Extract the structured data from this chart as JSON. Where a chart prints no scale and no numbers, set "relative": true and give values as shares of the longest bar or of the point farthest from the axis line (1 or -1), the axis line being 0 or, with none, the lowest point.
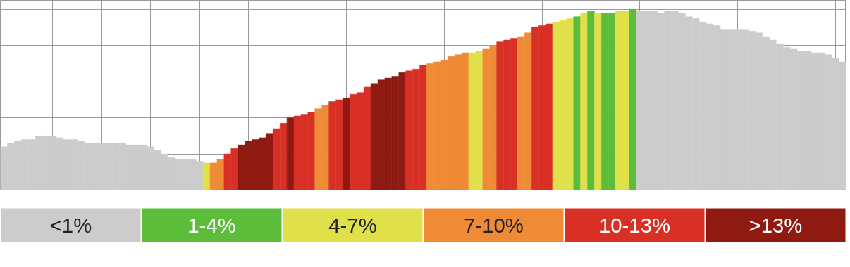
{
  "chart_data": [
    {
      "type": "bar",
      "relative": true,
      "grid": true,
      "tick_labels": false,
      "categories": [
        null,
        null,
        null,
        null,
        null,
        null,
        null,
        null,
        null,
        null,
        null,
        null,
        null,
        null,
        null,
        null,
        null,
        null,
        null,
        null,
        null,
        null,
        null,
        null,
        null,
        null,
        null,
        null,
        null,
        null,
        null,
        null,
        null,
        null,
        null,
        null,
        null,
        null,
        null,
        null,
        null,
        null,
        null,
        null,
        null,
        null,
        null,
        null,
        null,
        null,
        null,
        null,
        null,
        null,
        null,
        null,
        null,
        null,
        null,
        null,
        null,
        null,
        null,
        null,
        null,
        null,
        null,
        null,
        null,
        null,
        null,
        null,
        null,
        null,
        null,
        null,
        null,
        null,
        null,
        null,
        null,
        null,
        null,
        null,
        null,
        null,
        null,
        null,
        null,
        null,
        null,
        null,
        null,
        null,
        null,
        null,
        null,
        null,
        null,
        null,
        null,
        null,
        null,
        null,
        null,
        null,
        null,
        null,
        null,
        null,
        null,
        null,
        null,
        null,
        null,
        null,
        null,
        null,
        null,
        null,
        null
      ],
      "values": [
        0.24,
        0.26,
        0.27,
        0.28,
        0.28,
        0.3,
        0.3,
        0.3,
        0.29,
        0.28,
        0.28,
        0.27,
        0.26,
        0.26,
        0.26,
        0.26,
        0.26,
        0.26,
        0.25,
        0.25,
        0.25,
        0.24,
        0.22,
        0.2,
        0.18,
        0.17,
        0.17,
        0.17,
        0.16,
        0.15,
        0.15,
        0.17,
        0.2,
        0.23,
        0.25,
        0.27,
        0.28,
        0.29,
        0.31,
        0.34,
        0.37,
        0.4,
        0.41,
        0.42,
        0.43,
        0.45,
        0.47,
        0.49,
        0.5,
        0.51,
        0.53,
        0.54,
        0.57,
        0.59,
        0.61,
        0.62,
        0.63,
        0.65,
        0.66,
        0.67,
        0.69,
        0.7,
        0.71,
        0.72,
        0.74,
        0.75,
        0.76,
        0.76,
        0.77,
        0.78,
        0.8,
        0.82,
        0.83,
        0.84,
        0.85,
        0.87,
        0.9,
        0.91,
        0.92,
        0.93,
        0.94,
        0.95,
        0.96,
        0.98,
        0.99,
        0.98,
        0.98,
        0.98,
        0.99,
        0.99,
        1,
        0.99,
        0.99,
        0.99,
        0.98,
        0.99,
        0.99,
        0.98,
        0.96,
        0.95,
        0.93,
        0.92,
        0.91,
        0.89,
        0.89,
        0.89,
        0.89,
        0.88,
        0.87,
        0.85,
        0.83,
        0.81,
        0.79,
        0.78,
        0.77,
        0.77,
        0.76,
        0.76,
        0.75,
        0.73,
        0.71
      ],
      "colors": [
        "#cccccc",
        "#cccccc",
        "#cccccc",
        "#cccccc",
        "#cccccc",
        "#cccccc",
        "#cccccc",
        "#cccccc",
        "#cccccc",
        "#cccccc",
        "#cccccc",
        "#cccccc",
        "#cccccc",
        "#cccccc",
        "#cccccc",
        "#cccccc",
        "#cccccc",
        "#cccccc",
        "#cccccc",
        "#cccccc",
        "#cccccc",
        "#cccccc",
        "#cccccc",
        "#cccccc",
        "#cccccc",
        "#cccccc",
        "#cccccc",
        "#cccccc",
        "#cccccc",
        "#e0e04a",
        "#ef8b36",
        "#ef8b36",
        "#d93025",
        "#d93025",
        "#8e1a12",
        "#8e1a12",
        "#8e1a12",
        "#8e1a12",
        "#8e1a12",
        "#d93025",
        "#d93025",
        "#8e1a12",
        "#d93025",
        "#d93025",
        "#d93025",
        "#ef8b36",
        "#ef8b36",
        "#d93025",
        "#d93025",
        "#8e1a12",
        "#d93025",
        "#d93025",
        "#d93025",
        "#8e1a12",
        "#8e1a12",
        "#8e1a12",
        "#8e1a12",
        "#8e1a12",
        "#d93025",
        "#d93025",
        "#d93025",
        "#ef8b36",
        "#ef8b36",
        "#ef8b36",
        "#ef8b36",
        "#ef8b36",
        "#ef8b36",
        "#e0e04a",
        "#e0e04a",
        "#ef8b36",
        "#ef8b36",
        "#d93025",
        "#d93025",
        "#d93025",
        "#ef8b36",
        "#ef8b36",
        "#d93025",
        "#d93025",
        "#d93025",
        "#e0e04a",
        "#e0e04a",
        "#e0e04a",
        "#5bbd3a",
        "#e0e04a",
        "#5bbd3a",
        "#e0e04a",
        "#5bbd3a",
        "#5bbd3a",
        "#e0e04a",
        "#e0e04a",
        "#5bbd3a",
        "#cccccc",
        "#cccccc",
        "#cccccc",
        "#cccccc",
        "#cccccc",
        "#cccccc",
        "#cccccc",
        "#cccccc",
        "#cccccc",
        "#cccccc",
        "#cccccc",
        "#cccccc",
        "#cccccc",
        "#cccccc",
        "#cccccc",
        "#cccccc",
        "#cccccc",
        "#cccccc",
        "#cccccc",
        "#cccccc",
        "#cccccc",
        "#cccccc",
        "#cccccc",
        "#cccccc",
        "#cccccc",
        "#cccccc",
        "#cccccc",
        "#cccccc",
        "#cccccc",
        "#cccccc"
      ]
    },
    {
      "type": "other",
      "categories": [
        "<1%",
        "1-4%",
        "4-7%",
        "7-10%",
        "10-13%",
        ">13%"
      ],
      "colors": [
        "#cccccc",
        "#5bbd3a",
        "#e0e04a",
        "#ef8b36",
        "#d93025",
        "#8e1a12"
      ]
    }
  ]
}
